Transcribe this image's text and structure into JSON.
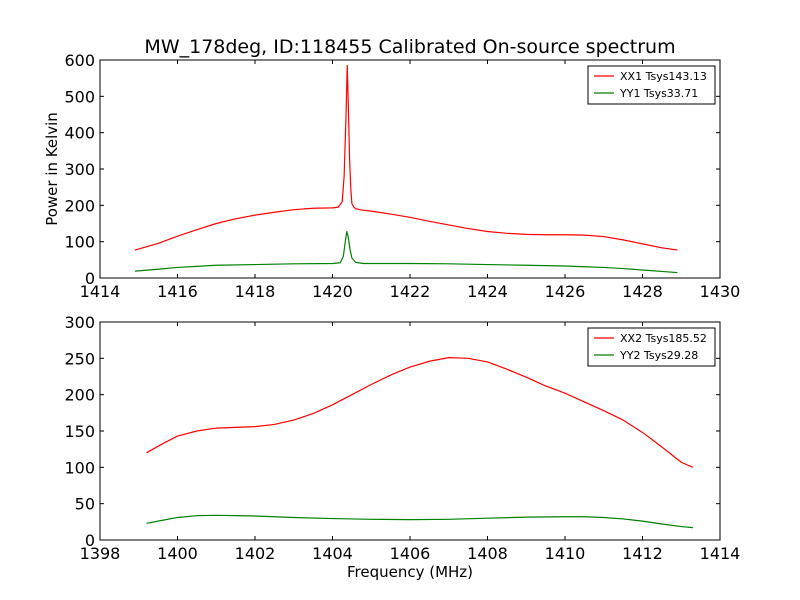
{
  "chart_data": [
    {
      "type": "line",
      "title": "MW_178deg, ID:118455 Calibrated On-source spectrum",
      "xlabel": "",
      "ylabel": "Power in Kelvin",
      "xlim": [
        1414,
        1430
      ],
      "ylim": [
        0,
        600
      ],
      "xticks": [
        1414,
        1416,
        1418,
        1420,
        1422,
        1424,
        1426,
        1428,
        1430
      ],
      "yticks": [
        0,
        100,
        200,
        300,
        400,
        500,
        600
      ],
      "grid": false,
      "legend_position": "top-right",
      "series": [
        {
          "name": "XX1 Tsys143.13",
          "color": "#ff0000",
          "x": [
            1414.9,
            1415.5,
            1416.0,
            1416.5,
            1417.0,
            1417.5,
            1418.0,
            1418.5,
            1419.0,
            1419.5,
            1420.0,
            1420.15,
            1420.25,
            1420.3,
            1420.35,
            1420.38,
            1420.41,
            1420.44,
            1420.47,
            1420.5,
            1420.55,
            1420.6,
            1420.7,
            1421.0,
            1421.5,
            1422.0,
            1422.5,
            1423.0,
            1423.5,
            1424.0,
            1424.5,
            1425.0,
            1425.5,
            1426.0,
            1426.5,
            1427.0,
            1427.5,
            1428.0,
            1428.5,
            1428.9
          ],
          "y": [
            77,
            95,
            115,
            133,
            150,
            163,
            173,
            181,
            188,
            192,
            193,
            195,
            210,
            280,
            450,
            585,
            470,
            330,
            250,
            205,
            195,
            191,
            188,
            184,
            176,
            167,
            156,
            146,
            136,
            128,
            123,
            120,
            119,
            119,
            118,
            114,
            105,
            94,
            83,
            77
          ]
        },
        {
          "name": "YY1 Tsys33.71",
          "color": "#008000",
          "x": [
            1414.9,
            1415.5,
            1416.0,
            1416.5,
            1417.0,
            1418.0,
            1419.0,
            1420.0,
            1420.2,
            1420.28,
            1420.33,
            1420.37,
            1420.41,
            1420.45,
            1420.5,
            1420.6,
            1420.8,
            1421.5,
            1422.0,
            1423.0,
            1424.0,
            1425.0,
            1426.0,
            1426.5,
            1427.0,
            1427.5,
            1428.0,
            1428.5,
            1428.9
          ],
          "y": [
            19,
            24,
            29,
            32,
            35,
            37,
            39,
            40,
            42,
            60,
            100,
            128,
            110,
            80,
            55,
            43,
            40,
            40,
            40,
            39,
            37,
            35,
            33,
            31,
            29,
            26,
            22,
            18,
            15
          ]
        }
      ]
    },
    {
      "type": "line",
      "title": "",
      "xlabel": "Frequency (MHz)",
      "ylabel": "",
      "xlim": [
        1398,
        1414
      ],
      "ylim": [
        0,
        300
      ],
      "xticks": [
        1398,
        1400,
        1402,
        1404,
        1406,
        1408,
        1410,
        1412,
        1414
      ],
      "yticks": [
        0,
        50,
        100,
        150,
        200,
        250,
        300
      ],
      "grid": false,
      "legend_position": "top-right",
      "series": [
        {
          "name": "XX2 Tsys185.52",
          "color": "#ff0000",
          "x": [
            1399.2,
            1399.6,
            1400.0,
            1400.5,
            1401.0,
            1401.5,
            1402.0,
            1402.5,
            1403.0,
            1403.5,
            1404.0,
            1404.5,
            1405.0,
            1405.5,
            1406.0,
            1406.5,
            1407.0,
            1407.5,
            1408.0,
            1408.5,
            1409.0,
            1409.5,
            1410.0,
            1410.5,
            1411.0,
            1411.5,
            1412.0,
            1412.5,
            1413.0,
            1413.3
          ],
          "y": [
            120,
            132,
            143,
            150,
            154,
            155,
            156,
            159,
            165,
            174,
            186,
            200,
            214,
            227,
            238,
            246,
            251,
            250,
            245,
            235,
            224,
            212,
            202,
            190,
            178,
            165,
            148,
            128,
            107,
            100
          ]
        },
        {
          "name": "YY2 Tsys29.28",
          "color": "#008000",
          "x": [
            1399.2,
            1399.6,
            1400.0,
            1400.5,
            1401.0,
            1401.5,
            1402.0,
            1403.0,
            1404.0,
            1405.0,
            1406.0,
            1407.0,
            1408.0,
            1409.0,
            1410.0,
            1410.5,
            1411.0,
            1411.5,
            1412.0,
            1412.5,
            1413.0,
            1413.3
          ],
          "y": [
            23,
            27,
            31,
            33.5,
            34,
            33.5,
            33,
            31,
            29.5,
            28.5,
            28,
            28.5,
            30,
            31.5,
            32,
            32,
            31,
            29,
            26,
            22,
            18.5,
            17
          ]
        }
      ]
    }
  ]
}
